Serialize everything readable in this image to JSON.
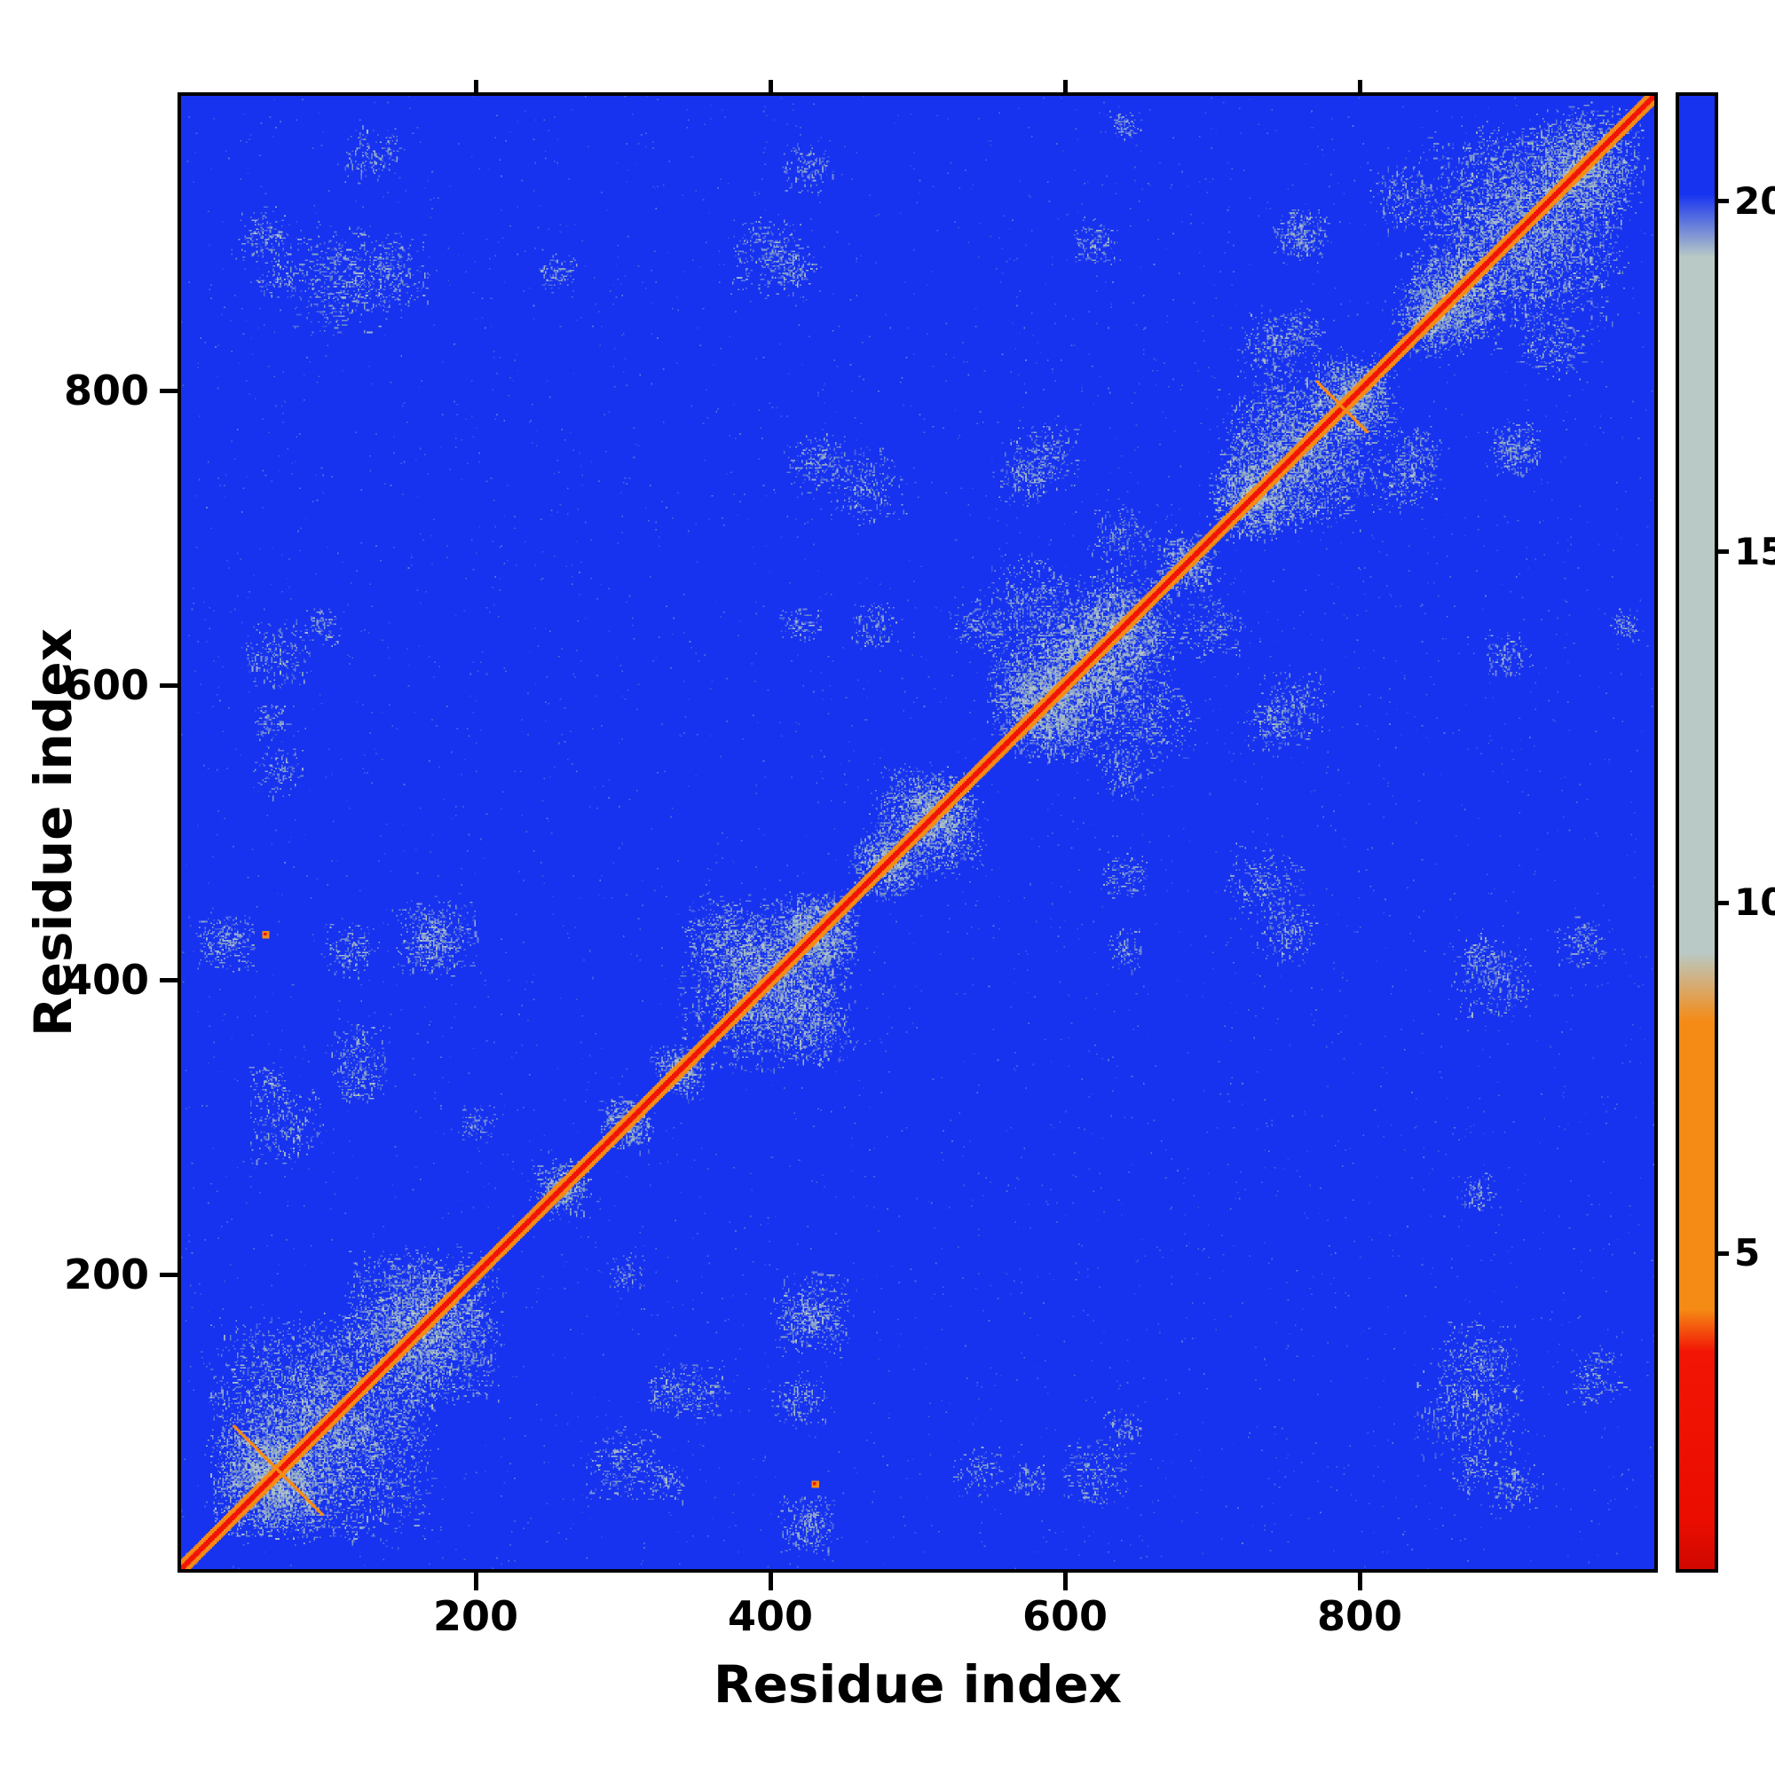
{
  "chart_data": {
    "type": "heatmap",
    "xlabel": "Residue index",
    "ylabel": "Residue index",
    "x_ticks": [
      200,
      400,
      600,
      800
    ],
    "y_ticks": [
      200,
      400,
      600,
      800
    ],
    "x_range": [
      1,
      1000
    ],
    "y_range": [
      1,
      1000
    ],
    "matrix_size": 1000,
    "description": "Symmetric residue-residue distance matrix: blue background = far pairs (>20), pale grey speckled patches = 8-20, orange = 4-8, red = closest contacts (<4). Sharp red main diagonal with orange flanks, pale contact clusters along the diagonal and mirrored off-diagonal patches.",
    "colorbar": {
      "ticks": [
        5,
        10,
        15,
        20
      ],
      "vmin": 0.5,
      "vmax": 21.5,
      "stops": [
        [
          21.5,
          "#1733f0"
        ],
        [
          20.1,
          "#1733f0"
        ],
        [
          19.2,
          "#b9cac6"
        ],
        [
          9.3,
          "#b9cac6"
        ],
        [
          8.3,
          "#f58a15"
        ],
        [
          4.2,
          "#f58a15"
        ],
        [
          3.6,
          "#f21505"
        ],
        [
          1.2,
          "#ea0d00"
        ],
        [
          0.5,
          "#d00800"
        ]
      ]
    },
    "colors": {
      "background": "#1733f0",
      "speckle": "#b9cac6",
      "speckle_dark": "#93b2b8",
      "orange": "#f58a15",
      "red": "#f21505"
    },
    "diagonal": {
      "half_width": 1,
      "flank_half_width": 3
    },
    "antidiagonal_segments": [
      {
        "center": 66,
        "half": 30
      },
      {
        "center": 788,
        "half": 17
      }
    ],
    "orange_specks": [
      [
        430,
        57
      ]
    ],
    "noise_dots": 2600,
    "clusters": [
      [
        95,
        95,
        80,
        2600
      ],
      [
        160,
        165,
        55,
        1800
      ],
      [
        60,
        60,
        40,
        1200
      ],
      [
        255,
        260,
        20,
        250
      ],
      [
        300,
        305,
        18,
        200
      ],
      [
        335,
        340,
        18,
        220
      ],
      [
        390,
        400,
        55,
        1500
      ],
      [
        430,
        430,
        30,
        700
      ],
      [
        480,
        475,
        25,
        400
      ],
      [
        505,
        510,
        38,
        900
      ],
      [
        575,
        590,
        30,
        700
      ],
      [
        600,
        610,
        55,
        1600
      ],
      [
        640,
        635,
        40,
        900
      ],
      [
        680,
        685,
        20,
        250
      ],
      [
        725,
        730,
        30,
        600
      ],
      [
        755,
        760,
        55,
        1400
      ],
      [
        800,
        790,
        30,
        600
      ],
      [
        845,
        850,
        25,
        350
      ],
      [
        865,
        860,
        35,
        700
      ],
      [
        905,
        915,
        70,
        2200
      ],
      [
        950,
        955,
        40,
        900
      ],
      [
        30,
        425,
        22,
        260
      ],
      [
        170,
        425,
        28,
        300
      ],
      [
        370,
        430,
        30,
        350
      ],
      [
        105,
        875,
        40,
        450
      ],
      [
        55,
        905,
        20,
        150
      ],
      [
        400,
        890,
        30,
        300
      ],
      [
        255,
        880,
        15,
        90
      ],
      [
        585,
        755,
        25,
        250
      ],
      [
        430,
        750,
        22,
        180
      ],
      [
        735,
        465,
        28,
        250
      ],
      [
        950,
        425,
        18,
        130
      ],
      [
        880,
        140,
        30,
        280
      ],
      [
        620,
        65,
        25,
        220
      ],
      [
        430,
        175,
        28,
        260
      ],
      [
        300,
        70,
        28,
        260
      ],
      [
        350,
        120,
        22,
        160
      ],
      [
        120,
        330,
        18,
        130
      ],
      [
        960,
        130,
        22,
        160
      ],
      [
        660,
        575,
        30,
        300
      ],
      [
        700,
        640,
        25,
        200
      ],
      [
        830,
        740,
        25,
        250
      ],
      [
        930,
        830,
        25,
        220
      ],
      [
        620,
        900,
        18,
        120
      ],
      [
        760,
        905,
        18,
        120
      ],
      [
        540,
        640,
        20,
        150
      ],
      [
        60,
        330,
        15,
        90
      ],
      [
        200,
        300,
        15,
        80
      ],
      [
        880,
        420,
        15,
        90
      ],
      [
        740,
        570,
        20,
        140
      ],
      [
        980,
        640,
        12,
        70
      ],
      [
        540,
        65,
        18,
        110
      ],
      [
        875,
        65,
        15,
        80
      ],
      [
        95,
        640,
        15,
        90
      ],
      [
        60,
        575,
        15,
        90
      ],
      [
        115,
        420,
        20,
        160
      ],
      [
        640,
        470,
        18,
        120
      ],
      [
        420,
        640,
        15,
        90
      ],
      [
        905,
        760,
        20,
        160
      ],
      [
        760,
        840,
        18,
        130
      ]
    ]
  }
}
